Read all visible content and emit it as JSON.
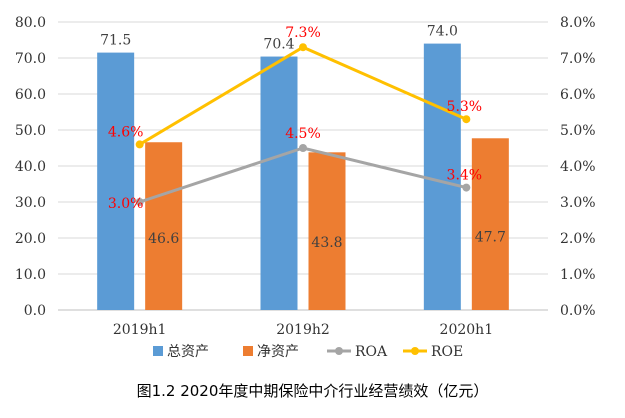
{
  "chart_data": {
    "type": "bar",
    "categories": [
      "2019h1",
      "2019h2",
      "2020h1"
    ],
    "series": [
      {
        "name": "总资产",
        "kind": "bar",
        "axis": "left",
        "color": "#5b9bd5",
        "values": [
          71.5,
          70.4,
          74.0
        ],
        "labels": [
          "71.5",
          "70.4",
          "74.0"
        ]
      },
      {
        "name": "净资产",
        "kind": "bar",
        "axis": "left",
        "color": "#ed7d31",
        "values": [
          46.6,
          43.8,
          47.7
        ],
        "labels": [
          "46.6",
          "43.8",
          "47.7"
        ]
      },
      {
        "name": "ROA",
        "kind": "line",
        "axis": "right",
        "color": "#a5a5a5",
        "values": [
          3.0,
          4.5,
          3.4
        ],
        "labels": [
          "3.0%",
          "4.5%",
          "3.4%"
        ]
      },
      {
        "name": "ROE",
        "kind": "line",
        "axis": "right",
        "color": "#ffc000",
        "values": [
          4.6,
          7.3,
          5.3
        ],
        "labels": [
          "4.6%",
          "7.3%",
          "5.3%"
        ]
      }
    ],
    "left_axis": {
      "min": 0,
      "max": 80,
      "step": 10,
      "tick_labels": [
        "0.0",
        "10.0",
        "20.0",
        "30.0",
        "40.0",
        "50.0",
        "60.0",
        "70.0",
        "80.0"
      ]
    },
    "right_axis": {
      "min": 0,
      "max": 8,
      "step": 1,
      "tick_labels": [
        "0.0%",
        "1.0%",
        "2.0%",
        "3.0%",
        "4.0%",
        "5.0%",
        "6.0%",
        "7.0%",
        "8.0%"
      ]
    },
    "legend_position": "bottom",
    "line_label_color": "#ff0000",
    "title": "图1.2  2020年度中期保险中介行业经营绩效（亿元）"
  }
}
